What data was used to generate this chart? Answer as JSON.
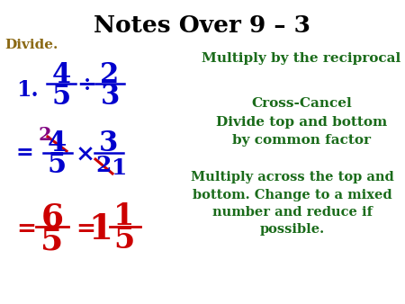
{
  "title": "Notes Over 9 – 3",
  "bg_color": "#ffffff",
  "title_color": "#000000",
  "divide_label": "Divide.",
  "blue": "#0000CD",
  "purple": "#800080",
  "red": "#CC0000",
  "green": "#1a6b1a",
  "right_text1": "Multiply by the reciprocal",
  "right_text2": "Cross-Cancel\nDivide top and bottom\nby common factor",
  "right_text3": "Multiply across the top and\nbottom. Change to a mixed\nnumber and reduce if\npossible."
}
